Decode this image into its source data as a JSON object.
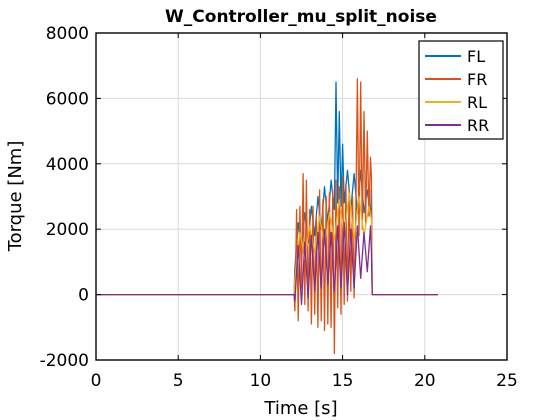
{
  "chart_data": {
    "type": "line",
    "title": "W_Controller_mu_split_noise",
    "xlabel": "Time [s]",
    "ylabel": "Torque [Nm]",
    "xlim": [
      0,
      25
    ],
    "ylim": [
      -2000,
      8000
    ],
    "xticks": [
      0,
      5,
      10,
      15,
      20,
      25
    ],
    "xtick_labels": [
      "0",
      "5",
      "10",
      "15",
      "20",
      "25"
    ],
    "yticks": [
      -2000,
      0,
      2000,
      4000,
      6000,
      8000
    ],
    "ytick_labels": [
      "-2000",
      "0",
      "2000",
      "4000",
      "6000",
      "8000"
    ],
    "grid": true,
    "legend_position": "top-right",
    "series": [
      {
        "name": "FL",
        "color": "#0072BD",
        "x": [
          0,
          12.05,
          12.1,
          12.3,
          12.5,
          12.7,
          12.9,
          13.1,
          13.3,
          13.5,
          13.7,
          13.9,
          14.1,
          14.3,
          14.5,
          14.6,
          14.7,
          14.8,
          14.9,
          15.0,
          15.1,
          15.3,
          15.5,
          15.7,
          15.9,
          16.1,
          16.3,
          16.5,
          16.7,
          16.75,
          16.8,
          20.8
        ],
        "y": [
          0,
          0,
          800,
          2200,
          1400,
          2500,
          1600,
          2700,
          1800,
          3000,
          2000,
          3300,
          2200,
          3500,
          2600,
          6500,
          2800,
          5600,
          2700,
          4600,
          2800,
          3800,
          2600,
          3700,
          2500,
          3800,
          2500,
          3200,
          2400,
          3200,
          0,
          0
        ]
      },
      {
        "name": "FR",
        "color": "#D95319",
        "x": [
          0,
          12.05,
          12.1,
          12.2,
          12.3,
          12.4,
          12.5,
          12.6,
          12.7,
          12.8,
          12.9,
          13.0,
          13.1,
          13.2,
          13.3,
          13.4,
          13.5,
          13.6,
          13.7,
          13.8,
          13.9,
          14.0,
          14.1,
          14.2,
          14.3,
          14.4,
          14.5,
          14.6,
          14.7,
          14.8,
          14.9,
          15.0,
          15.1,
          15.2,
          15.3,
          15.4,
          15.5,
          15.6,
          15.7,
          15.8,
          15.9,
          16.0,
          16.1,
          16.2,
          16.3,
          16.4,
          16.5,
          16.6,
          16.7,
          16.75,
          16.8,
          20.8
        ],
        "y": [
          0,
          0,
          -500,
          2600,
          -800,
          2700,
          200,
          3700,
          -300,
          3500,
          -500,
          2600,
          -900,
          2700,
          -600,
          2400,
          -1000,
          3200,
          -800,
          2900,
          -1100,
          3000,
          -900,
          3100,
          -1000,
          3200,
          -1800,
          3500,
          -400,
          3300,
          -600,
          3600,
          -300,
          3400,
          -200,
          3200,
          100,
          3000,
          -100,
          2500,
          6600,
          1800,
          6500,
          2000,
          5600,
          2200,
          5000,
          2400,
          4200,
          3600,
          0,
          0
        ]
      },
      {
        "name": "RL",
        "color": "#EDB120",
        "x": [
          0,
          12.05,
          12.1,
          12.4,
          12.7,
          13.0,
          13.3,
          13.6,
          13.9,
          14.2,
          14.5,
          14.8,
          15.1,
          15.4,
          15.7,
          16.0,
          16.3,
          16.6,
          16.75,
          16.8,
          20.8
        ],
        "y": [
          0,
          0,
          500,
          1900,
          1100,
          2100,
          1300,
          2400,
          1500,
          2500,
          1700,
          2900,
          1800,
          3100,
          1700,
          3000,
          1800,
          2700,
          2300,
          0,
          0
        ]
      },
      {
        "name": "RR",
        "color": "#7E2F8E",
        "x": [
          0,
          12.05,
          12.1,
          12.3,
          12.5,
          12.7,
          12.9,
          13.1,
          13.3,
          13.5,
          13.7,
          13.9,
          14.1,
          14.3,
          14.5,
          14.7,
          14.9,
          15.1,
          15.3,
          15.5,
          15.7,
          15.9,
          16.1,
          16.3,
          16.5,
          16.7,
          16.75,
          16.8,
          20.8
        ],
        "y": [
          0,
          0,
          -200,
          1500,
          -300,
          1600,
          -100,
          1800,
          100,
          1900,
          200,
          2000,
          300,
          1900,
          100,
          2100,
          200,
          2200,
          0,
          2000,
          200,
          2100,
          500,
          1900,
          700,
          2100,
          1300,
          0,
          0
        ]
      }
    ]
  }
}
